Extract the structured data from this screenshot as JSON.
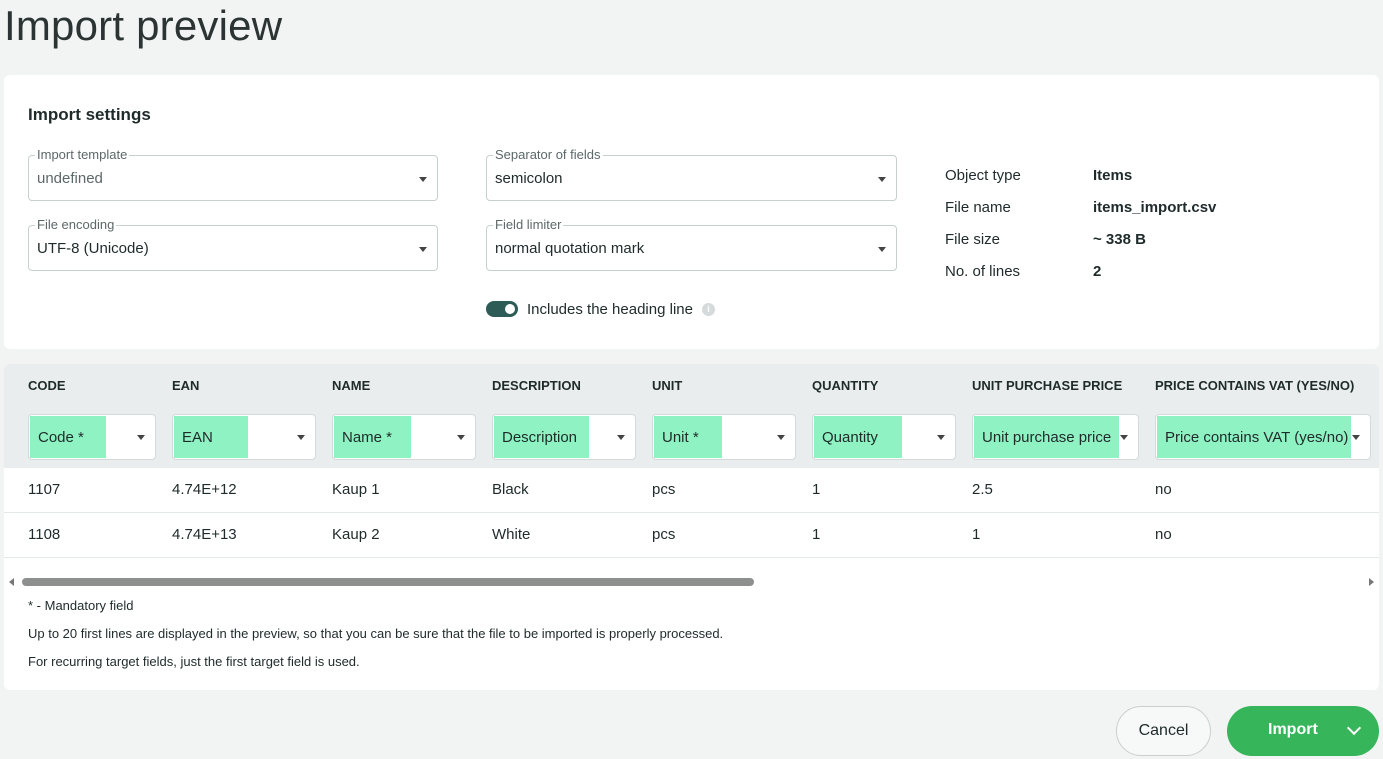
{
  "page": {
    "title": "Import preview"
  },
  "settings": {
    "title": "Import settings",
    "import_template": {
      "label": "Import template",
      "value": "undefined"
    },
    "separator": {
      "label": "Separator of fields",
      "value": "semicolon"
    },
    "encoding": {
      "label": "File encoding",
      "value": "UTF-8 (Unicode)"
    },
    "limiter": {
      "label": "Field limiter",
      "value": "normal quotation mark"
    },
    "heading_toggle": {
      "label": "Includes the heading line",
      "on": true,
      "info_icon": "info-icon"
    }
  },
  "meta": [
    {
      "key": "Object type",
      "value": "Items"
    },
    {
      "key": "File name",
      "value": "items_import.csv"
    },
    {
      "key": "File size",
      "value": "~ 338 B"
    },
    {
      "key": "No. of lines",
      "value": "2"
    }
  ],
  "table": {
    "headers": [
      "CODE",
      "EAN",
      "NAME",
      "DESCRIPTION",
      "UNIT",
      "QUANTITY",
      "UNIT PURCHASE PRICE",
      "PRICE CONTAINS VAT (YES/NO)"
    ],
    "mappings": [
      "Code *",
      "EAN",
      "Name *",
      "Description",
      "Unit *",
      "Quantity",
      "Unit purchase price",
      "Price contains VAT (yes/no)"
    ],
    "rows": [
      [
        "1107",
        "4.74E+12",
        "Kaup 1",
        "Black",
        "pcs",
        "1",
        "2.5",
        "no"
      ],
      [
        "1108",
        "4.74E+13",
        "Kaup 2",
        "White",
        "pcs",
        "1",
        "1",
        "no"
      ]
    ]
  },
  "notes": [
    "* - Mandatory field",
    "Up to 20 first lines are displayed in the preview, so that you can be sure that the file to be imported is properly processed.",
    "For recurring target fields, just the first target field is used."
  ],
  "actions": {
    "cancel": "Cancel",
    "import": "Import"
  },
  "colors": {
    "accent_green": "#36b55a",
    "mapped_fill": "#8ef2c2",
    "toggle_on": "#2d5c57"
  }
}
